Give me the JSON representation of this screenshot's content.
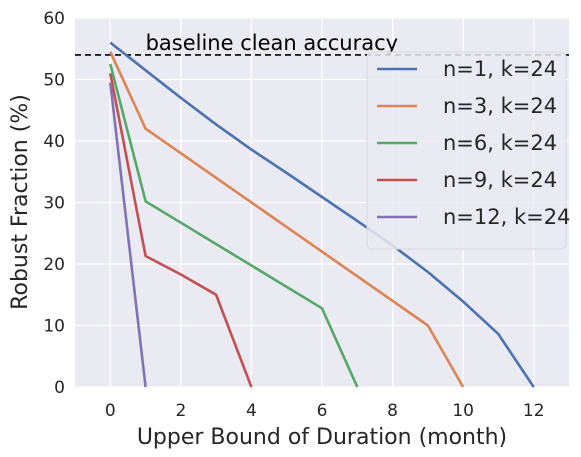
{
  "chart_data": {
    "type": "line",
    "title": "",
    "xlabel": "Upper Bound of Duration (month)",
    "ylabel": "Robust Fraction (%)",
    "xlim": [
      -1,
      13
    ],
    "ylim": [
      0,
      60
    ],
    "xticks": [
      0,
      2,
      4,
      6,
      8,
      10,
      12
    ],
    "yticks": [
      0,
      10,
      20,
      30,
      40,
      50,
      60
    ],
    "grid": true,
    "legend_position": "upper-right",
    "baseline": {
      "value": 54,
      "label": "baseline clean accuracy",
      "style": "dashed",
      "color": "#000000"
    },
    "series": [
      {
        "name": "n=1, k=24",
        "color": "#4c72b0",
        "x": [
          0,
          1,
          2,
          3,
          4,
          5,
          6,
          7,
          8,
          9,
          10,
          11,
          12
        ],
        "y": [
          56,
          51.5,
          47,
          42.7,
          38.6,
          34.8,
          30.9,
          27,
          23,
          18.7,
          13.9,
          8.6,
          0
        ]
      },
      {
        "name": "n=3, k=24",
        "color": "#dd8452",
        "x": [
          0,
          1,
          9,
          10
        ],
        "y": [
          54.5,
          42,
          10,
          0
        ]
      },
      {
        "name": "n=6, k=24",
        "color": "#55a868",
        "x": [
          0,
          1,
          6,
          7
        ],
        "y": [
          52.5,
          30.2,
          12.8,
          0
        ]
      },
      {
        "name": "n=9, k=24",
        "color": "#c44e52",
        "x": [
          0,
          1,
          2,
          3,
          4
        ],
        "y": [
          51,
          21.3,
          18.3,
          15,
          0
        ]
      },
      {
        "name": "n=12, k=24",
        "color": "#8172b3",
        "x": [
          0,
          1
        ],
        "y": [
          49.5,
          0
        ]
      }
    ]
  }
}
